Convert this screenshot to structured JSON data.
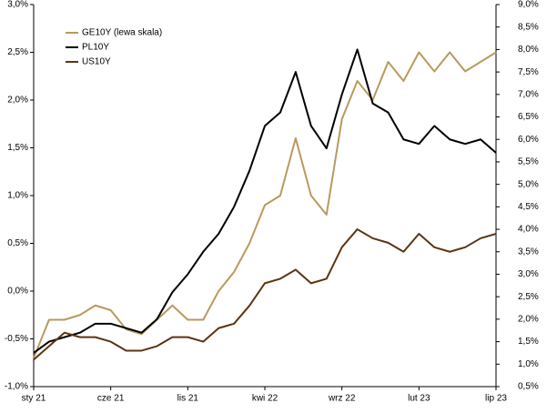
{
  "chart_data": {
    "type": "line",
    "categories": [
      "sty 21",
      null,
      null,
      null,
      null,
      "cze 21",
      null,
      null,
      null,
      null,
      "lis 21",
      null,
      null,
      null,
      null,
      "kwi 22",
      null,
      null,
      null,
      null,
      "wrz 22",
      null,
      null,
      null,
      null,
      "lut 23",
      null,
      null,
      null,
      null,
      "lip 23"
    ],
    "series": [
      {
        "name": "GE10Y (lewa skala)",
        "color": "#b89a5e",
        "axis": "y",
        "values": [
          -0.7,
          -0.3,
          -0.3,
          -0.25,
          -0.15,
          -0.2,
          -0.4,
          -0.45,
          -0.3,
          -0.15,
          -0.3,
          -0.3,
          0.0,
          0.2,
          0.5,
          0.9,
          1.0,
          1.6,
          1.0,
          0.8,
          1.8,
          2.2,
          2.0,
          2.4,
          2.2,
          2.5,
          2.3,
          2.5,
          2.3,
          2.4,
          2.5
        ]
      },
      {
        "name": "PL10Y",
        "color": "#000000",
        "axis": "y2",
        "values": [
          1.25,
          1.5,
          1.6,
          1.7,
          1.9,
          1.9,
          1.8,
          1.7,
          2.0,
          2.6,
          3.0,
          3.5,
          3.9,
          4.5,
          5.3,
          6.3,
          6.6,
          7.5,
          6.3,
          5.8,
          7.0,
          8.0,
          6.8,
          6.6,
          6.0,
          5.9,
          6.3,
          6.0,
          5.9,
          6.0,
          5.7
        ]
      },
      {
        "name": "US10Y",
        "color": "#5c3510",
        "axis": "y2",
        "values": [
          1.1,
          1.4,
          1.7,
          1.6,
          1.6,
          1.5,
          1.3,
          1.3,
          1.4,
          1.6,
          1.6,
          1.5,
          1.8,
          1.9,
          2.3,
          2.8,
          2.9,
          3.1,
          2.8,
          2.9,
          3.6,
          4.0,
          3.8,
          3.7,
          3.5,
          3.9,
          3.6,
          3.5,
          3.6,
          3.8,
          3.9
        ]
      }
    ],
    "ylim": [
      -1.0,
      3.0
    ],
    "yticks": [
      {
        "value": -1.0,
        "label": "-1,0%"
      },
      {
        "value": -0.5,
        "label": "-0,5%"
      },
      {
        "value": 0.0,
        "label": "0,0%"
      },
      {
        "value": 0.5,
        "label": "0,5%"
      },
      {
        "value": 1.0,
        "label": "1,0%"
      },
      {
        "value": 1.5,
        "label": "1,5%"
      },
      {
        "value": 2.0,
        "label": "2,0%"
      },
      {
        "value": 2.5,
        "label": "2,5%"
      },
      {
        "value": 3.0,
        "label": "3,0%"
      }
    ],
    "y2lim": [
      0.5,
      9.0
    ],
    "y2ticks": [
      {
        "value": 0.5,
        "label": "0,5%"
      },
      {
        "value": 1.0,
        "label": "1,0%"
      },
      {
        "value": 1.5,
        "label": "1,5%"
      },
      {
        "value": 2.0,
        "label": "2,0%"
      },
      {
        "value": 2.5,
        "label": "2,5%"
      },
      {
        "value": 3.0,
        "label": "3,0%"
      },
      {
        "value": 3.5,
        "label": "3,5%"
      },
      {
        "value": 4.0,
        "label": "4,0%"
      },
      {
        "value": 4.5,
        "label": "4,5%"
      },
      {
        "value": 5.0,
        "label": "5,0%"
      },
      {
        "value": 5.5,
        "label": "5,5%"
      },
      {
        "value": 6.0,
        "label": "6,0%"
      },
      {
        "value": 6.5,
        "label": "6,5%"
      },
      {
        "value": 7.0,
        "label": "7,0%"
      },
      {
        "value": 7.5,
        "label": "7,5%"
      },
      {
        "value": 8.0,
        "label": "8,0%"
      },
      {
        "value": 8.5,
        "label": "8,5%"
      },
      {
        "value": 9.0,
        "label": "9,0%"
      }
    ],
    "grid": false,
    "legend": "top-left"
  }
}
